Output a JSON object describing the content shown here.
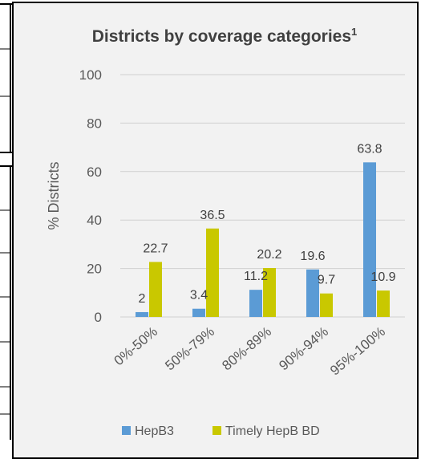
{
  "chart_data": {
    "type": "bar",
    "title": "Districts by coverage categories",
    "title_superscript": "1",
    "ylabel": "% Districts",
    "xlabel": "",
    "ylim": [
      0,
      100
    ],
    "yticks": [
      0,
      20,
      40,
      60,
      80,
      100
    ],
    "grid": true,
    "legend_position": "bottom",
    "categories": [
      "0%-50%",
      "50%-79%",
      "80%-89%",
      "90%-94%",
      "95%-100%"
    ],
    "series": [
      {
        "name": "HepB3",
        "color": "#5b9bd5",
        "values": [
          2,
          3.4,
          11.2,
          19.6,
          63.8
        ]
      },
      {
        "name": "Timely HepB BD",
        "color": "#c9c800",
        "values": [
          22.7,
          36.5,
          20.2,
          9.7,
          10.9
        ]
      }
    ]
  }
}
